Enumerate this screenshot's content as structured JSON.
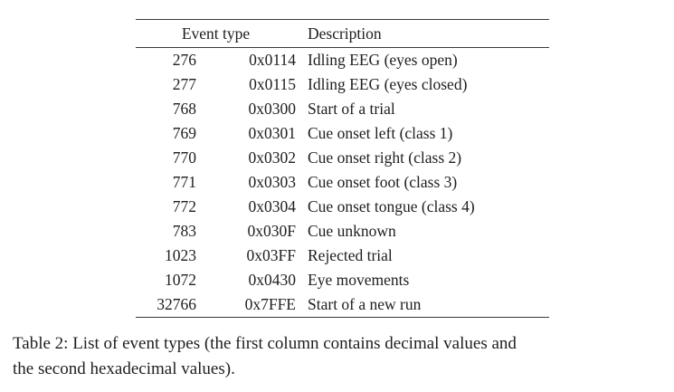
{
  "table": {
    "header_event_type": "Event type",
    "header_description": "Description",
    "rows": [
      {
        "decimal": "276",
        "hex": "0x0114",
        "description": "Idling EEG (eyes open)"
      },
      {
        "decimal": "277",
        "hex": "0x0115",
        "description": "Idling EEG (eyes closed)"
      },
      {
        "decimal": "768",
        "hex": "0x0300",
        "description": "Start of a trial"
      },
      {
        "decimal": "769",
        "hex": "0x0301",
        "description": "Cue onset left (class 1)"
      },
      {
        "decimal": "770",
        "hex": "0x0302",
        "description": "Cue onset right (class 2)"
      },
      {
        "decimal": "771",
        "hex": "0x0303",
        "description": "Cue onset foot (class 3)"
      },
      {
        "decimal": "772",
        "hex": "0x0304",
        "description": "Cue onset tongue (class 4)"
      },
      {
        "decimal": "783",
        "hex": "0x030F",
        "description": "Cue unknown"
      },
      {
        "decimal": "1023",
        "hex": "0x03FF",
        "description": "Rejected trial"
      },
      {
        "decimal": "1072",
        "hex": "0x0430",
        "description": "Eye movements"
      },
      {
        "decimal": "32766",
        "hex": "0x7FFE",
        "description": "Start of a new run"
      }
    ]
  },
  "caption": {
    "line1": "Table 2: List of event types (the first column contains decimal values and",
    "line2": "the second hexadecimal values)."
  },
  "colors": {
    "text": "#1e1e1e",
    "rule": "#3a3a3a",
    "background": "#ffffff"
  }
}
